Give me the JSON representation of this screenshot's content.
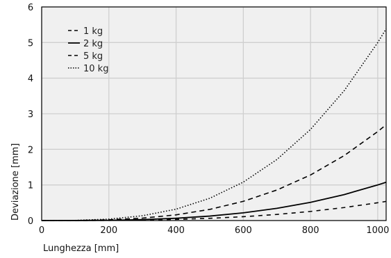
{
  "chart_data": {
    "type": "line",
    "xlabel": "Lunghezza [mm]",
    "ylabel": "Deviazione [mm]",
    "xlim": [
      0,
      1025
    ],
    "ylim": [
      0,
      6
    ],
    "x_ticks": [
      0,
      200,
      400,
      600,
      800,
      1000
    ],
    "y_ticks": [
      0,
      1,
      2,
      3,
      4,
      5,
      6
    ],
    "grid": true,
    "legend_position": "top-left",
    "background": "#f0f0f0",
    "x": [
      0,
      100,
      200,
      300,
      400,
      500,
      600,
      700,
      800,
      900,
      1000,
      1025
    ],
    "series": [
      {
        "name": "1 kg",
        "dash": "dashed-wide",
        "values": [
          0,
          0.0005,
          0.004,
          0.014,
          0.032,
          0.063,
          0.108,
          0.172,
          0.256,
          0.365,
          0.5,
          0.538
        ]
      },
      {
        "name": "2 kg",
        "dash": "solid",
        "values": [
          0,
          0.001,
          0.008,
          0.027,
          0.064,
          0.125,
          0.216,
          0.343,
          0.512,
          0.729,
          1.0,
          1.077
        ]
      },
      {
        "name": "5 kg",
        "dash": "dashed",
        "values": [
          0,
          0.0025,
          0.02,
          0.068,
          0.16,
          0.313,
          0.54,
          0.858,
          1.28,
          1.823,
          2.5,
          2.692
        ]
      },
      {
        "name": "10 kg",
        "dash": "dotted",
        "values": [
          0,
          0.005,
          0.04,
          0.135,
          0.32,
          0.625,
          1.08,
          1.715,
          2.56,
          3.645,
          5.0,
          5.384
        ]
      }
    ]
  }
}
